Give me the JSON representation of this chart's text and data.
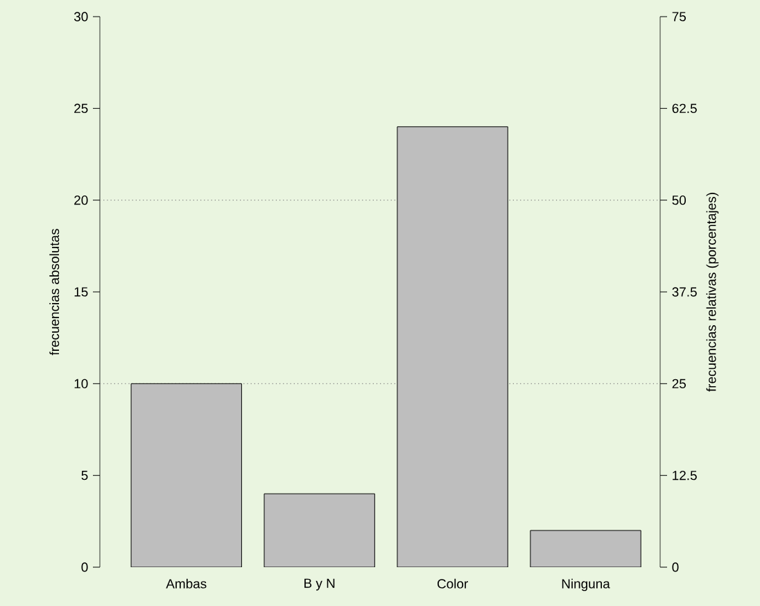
{
  "chart_data": {
    "type": "bar",
    "ylabel": "frecuencias absolutas",
    "y2label": "frecuencias relativas (porcentajes)",
    "categories": [
      "Ambas",
      "B y N",
      "Color",
      "Ninguna"
    ],
    "values": [
      10,
      4,
      24,
      2
    ],
    "color": "#bebebe",
    "ylim": [
      0,
      30
    ],
    "yticks": [
      0,
      5,
      10,
      15,
      20,
      25,
      30
    ],
    "y2lim": [
      0,
      75
    ],
    "y2ticks": [
      0,
      12.5,
      25,
      37.5,
      50,
      62.5,
      75
    ],
    "ref_lines": [
      {
        "axis": "y",
        "value": 10,
        "color": "#808080",
        "line_style": "dotted"
      },
      {
        "axis": "y",
        "value": 20,
        "color": "#808080",
        "line_style": "dotted"
      }
    ],
    "grid": false
  }
}
